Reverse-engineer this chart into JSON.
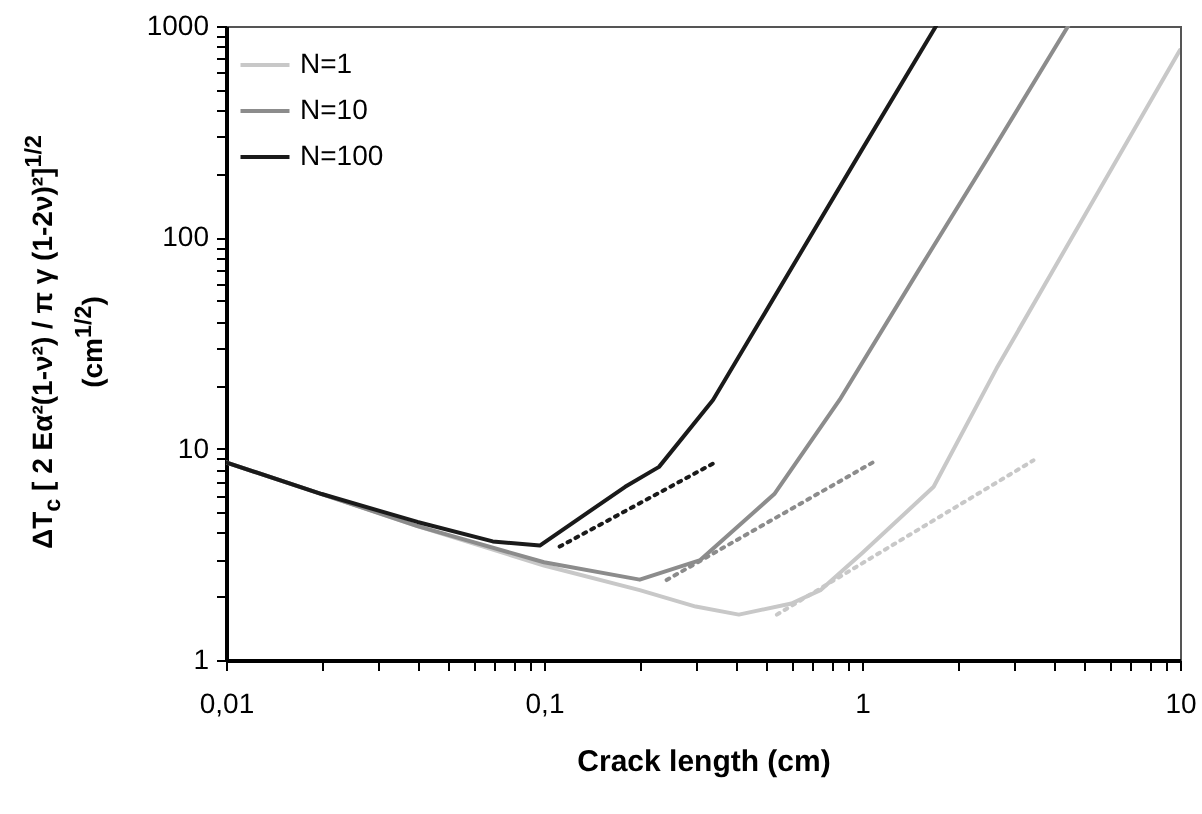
{
  "chart_data": {
    "type": "line",
    "xlabel": "Crack length (cm)",
    "ylabel": "ΔT$_{c}$ [ 2 Eα²(1-ν²) / π γ (1-2ν)²]$^{1/2}$\n(cm$^{1/2}$)",
    "log": "xy",
    "grid": false,
    "legend": "top left",
    "marker": "none",
    "xlim": [
      0.01,
      10
    ],
    "ylim": [
      1,
      1000
    ],
    "xticks": [
      {
        "value": 0.01,
        "label": "0,01"
      },
      {
        "value": 0.02,
        "label": null
      },
      {
        "value": 0.03,
        "label": null
      },
      {
        "value": 0.04,
        "label": null
      },
      {
        "value": 0.05,
        "label": null
      },
      {
        "value": 0.06,
        "label": null
      },
      {
        "value": 0.07,
        "label": null
      },
      {
        "value": 0.08,
        "label": null
      },
      {
        "value": 0.09,
        "label": null
      },
      {
        "value": 0.1,
        "label": "0,1"
      },
      {
        "value": 0.2,
        "label": null
      },
      {
        "value": 0.3,
        "label": null
      },
      {
        "value": 0.4,
        "label": null
      },
      {
        "value": 0.5,
        "label": null
      },
      {
        "value": 0.6,
        "label": null
      },
      {
        "value": 0.7,
        "label": null
      },
      {
        "value": 0.8,
        "label": null
      },
      {
        "value": 0.9,
        "label": null
      },
      1,
      {
        "value": 2,
        "label": null
      },
      {
        "value": 3,
        "label": null
      },
      {
        "value": 4,
        "label": null
      },
      {
        "value": 5,
        "label": null
      },
      {
        "value": 6,
        "label": null
      },
      {
        "value": 7,
        "label": null
      },
      {
        "value": 8,
        "label": null
      },
      {
        "value": 9,
        "label": null
      },
      10
    ],
    "yticks": [
      1,
      {
        "value": 2,
        "label": null
      },
      {
        "value": 3,
        "label": null
      },
      {
        "value": 4,
        "label": null
      },
      {
        "value": 5,
        "label": null
      },
      {
        "value": 6,
        "label": null
      },
      {
        "value": 7,
        "label": null
      },
      {
        "value": 8,
        "label": null
      },
      {
        "value": 9,
        "label": null
      },
      10,
      {
        "value": 20,
        "label": null
      },
      {
        "value": 30,
        "label": null
      },
      {
        "value": 40,
        "label": null
      },
      {
        "value": 50,
        "label": null
      },
      {
        "value": 60,
        "label": null
      },
      {
        "value": 70,
        "label": null
      },
      {
        "value": 80,
        "label": null
      },
      {
        "value": 90,
        "label": null
      },
      100,
      {
        "value": 200,
        "label": null
      },
      {
        "value": 300,
        "label": null
      },
      {
        "value": 400,
        "label": null
      },
      {
        "value": 500,
        "label": null
      },
      {
        "value": 600,
        "label": null
      },
      {
        "value": 700,
        "label": null
      },
      {
        "value": 800,
        "label": null
      },
      {
        "value": 900,
        "label": null
      },
      1000
    ],
    "series": [
      {
        "name": "N=1",
        "color": "#c8c8c8",
        "line_style": "solid",
        "x": [
          0.01,
          0.02,
          0.04,
          0.1,
          0.2,
          0.3,
          0.41,
          0.6,
          0.74,
          1,
          1.68,
          2.65,
          10
        ],
        "values": [
          8.6,
          6.1,
          4.3,
          2.8,
          2.14,
          1.79,
          1.64,
          1.85,
          2.14,
          3.2,
          6.6,
          24,
          770
        ]
      },
      {
        "name": "N=10",
        "color": "#8c8c8c",
        "line_style": "solid",
        "x": [
          0.01,
          0.02,
          0.04,
          0.1,
          0.2,
          0.31,
          0.53,
          0.85,
          1.5,
          2.5,
          4.45
        ],
        "values": [
          8.6,
          6.1,
          4.3,
          2.9,
          2.4,
          2.97,
          6.1,
          17,
          69,
          240,
          1000
        ]
      },
      {
        "name": "N=100",
        "color": "#1a1a1a",
        "line_style": "solid",
        "x": [
          0.01,
          0.02,
          0.04,
          0.069,
          0.097,
          0.18,
          0.23,
          0.34,
          0.5,
          1,
          1.71
        ],
        "values": [
          8.6,
          6.1,
          4.5,
          3.64,
          3.48,
          6.6,
          8.2,
          17,
          45,
          260,
          1000
        ]
      },
      {
        "color": "#c8c8c8",
        "line_style": "dotted",
        "x": [
          0.54,
          3.46
        ],
        "values": [
          1.64,
          8.8
        ]
      },
      {
        "color": "#8c8c8c",
        "line_style": "dotted",
        "x": [
          0.243,
          1.11
        ],
        "values": [
          2.39,
          8.8
        ]
      },
      {
        "color": "#1a1a1a",
        "line_style": "dotted",
        "x": [
          0.112,
          0.35
        ],
        "values": [
          3.44,
          8.7
        ]
      }
    ]
  }
}
